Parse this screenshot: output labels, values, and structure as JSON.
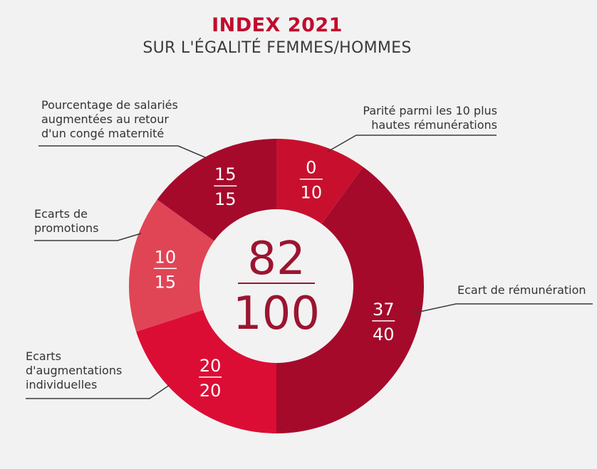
{
  "title": "INDEX 2021",
  "subtitle": "SUR L'ÉGALITÉ FEMMES/HOMMES",
  "center": {
    "score": "82",
    "max": "100"
  },
  "colors": {
    "background": "#f2f2f2",
    "center_fill": "#f2f2f2",
    "center_text": "#9c1430",
    "leader_line": "#3a3a3a",
    "segment_text": "#ffffff"
  },
  "chart_data": {
    "type": "pie",
    "title": "INDEX 2021",
    "subtitle": "SUR L'ÉGALITÉ FEMMES/HOMMES",
    "total": {
      "score": 82,
      "max": 100
    },
    "slices": [
      {
        "label": "Parité parmi les  10 plus hautes rémunérations",
        "score": 0,
        "max": 10,
        "color": "#c8102e"
      },
      {
        "label": "Ecart de rémunération",
        "score": 37,
        "max": 40,
        "color": "#a50a2b"
      },
      {
        "label": "Ecarts d'augmentations individuelles",
        "score": 20,
        "max": 20,
        "color": "#dc0d35"
      },
      {
        "label": "Ecarts de promotions",
        "score": 10,
        "max": 15,
        "color": "#e04555"
      },
      {
        "label": "Pourcentage de salariés augmentées au retour d'un congé maternité",
        "score": 15,
        "max": 15,
        "color": "#a50a2b"
      }
    ]
  },
  "labels": {
    "parite": [
      "Parité parmi les  10 plus",
      "hautes rémunérations"
    ],
    "remuneration": [
      "Ecart de rémunération"
    ],
    "augmentations": [
      "Ecarts",
      "d'augmentations",
      "individuelles"
    ],
    "promotions": [
      "Ecarts de",
      "promotions"
    ],
    "maternite": [
      "Pourcentage de salariés",
      "augmentées au retour",
      "d'un congé maternité"
    ]
  }
}
